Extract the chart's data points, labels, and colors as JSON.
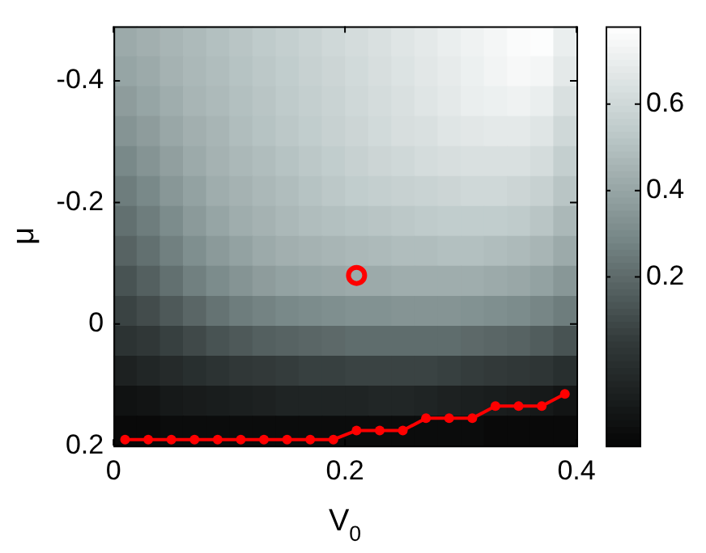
{
  "chart_data": {
    "type": "heatmap",
    "xlabel": "V$_{0}$",
    "ylabel": "μ",
    "xlim": [
      0,
      0.4
    ],
    "xticks": [
      0,
      0.2,
      0.4
    ],
    "ylim": [
      0.2,
      -0.49
    ],
    "yticks": [
      -0.4,
      -0.2,
      0,
      0.2
    ],
    "clim": [
      -0.19,
      0.78
    ],
    "cticks": [
      0.2,
      0.4,
      0.6
    ],
    "grid": false,
    "legend": false,
    "cells": [
      [
        0.42,
        0.44,
        0.46,
        0.48,
        0.5,
        0.52,
        0.54,
        0.56,
        0.58,
        0.6,
        0.62,
        0.64,
        0.66,
        0.68,
        0.7,
        0.72,
        0.74,
        0.76,
        0.77,
        0.7
      ],
      [
        0.4,
        0.42,
        0.45,
        0.47,
        0.49,
        0.51,
        0.53,
        0.55,
        0.57,
        0.59,
        0.61,
        0.63,
        0.65,
        0.67,
        0.69,
        0.71,
        0.73,
        0.75,
        0.74,
        0.68
      ],
      [
        0.37,
        0.4,
        0.43,
        0.46,
        0.48,
        0.5,
        0.52,
        0.54,
        0.56,
        0.58,
        0.6,
        0.62,
        0.64,
        0.66,
        0.68,
        0.7,
        0.71,
        0.72,
        0.7,
        0.64
      ],
      [
        0.34,
        0.37,
        0.41,
        0.44,
        0.46,
        0.49,
        0.51,
        0.53,
        0.55,
        0.57,
        0.59,
        0.61,
        0.63,
        0.64,
        0.66,
        0.67,
        0.68,
        0.68,
        0.66,
        0.6
      ],
      [
        0.3,
        0.34,
        0.38,
        0.42,
        0.45,
        0.47,
        0.49,
        0.51,
        0.53,
        0.55,
        0.57,
        0.59,
        0.6,
        0.62,
        0.63,
        0.64,
        0.64,
        0.64,
        0.62,
        0.56
      ],
      [
        0.26,
        0.3,
        0.35,
        0.39,
        0.43,
        0.45,
        0.47,
        0.49,
        0.51,
        0.53,
        0.55,
        0.56,
        0.57,
        0.58,
        0.59,
        0.6,
        0.6,
        0.59,
        0.57,
        0.52
      ],
      [
        0.22,
        0.26,
        0.31,
        0.36,
        0.4,
        0.43,
        0.45,
        0.47,
        0.49,
        0.5,
        0.51,
        0.52,
        0.53,
        0.54,
        0.55,
        0.55,
        0.55,
        0.54,
        0.52,
        0.47
      ],
      [
        0.18,
        0.22,
        0.27,
        0.32,
        0.36,
        0.39,
        0.42,
        0.44,
        0.45,
        0.46,
        0.47,
        0.48,
        0.49,
        0.49,
        0.5,
        0.5,
        0.49,
        0.48,
        0.46,
        0.42
      ],
      [
        0.13,
        0.17,
        0.22,
        0.27,
        0.31,
        0.34,
        0.37,
        0.39,
        0.4,
        0.41,
        0.42,
        0.42,
        0.43,
        0.43,
        0.43,
        0.43,
        0.42,
        0.41,
        0.39,
        0.35
      ],
      [
        0.08,
        0.11,
        0.15,
        0.19,
        0.23,
        0.26,
        0.28,
        0.3,
        0.31,
        0.32,
        0.33,
        0.33,
        0.34,
        0.34,
        0.34,
        0.33,
        0.32,
        0.31,
        0.29,
        0.26
      ],
      [
        0.02,
        0.04,
        0.07,
        0.1,
        0.13,
        0.15,
        0.17,
        0.18,
        0.19,
        0.2,
        0.21,
        0.21,
        0.21,
        0.21,
        0.21,
        0.2,
        0.19,
        0.18,
        0.16,
        0.13
      ],
      [
        -0.06,
        -0.04,
        -0.02,
        0.0,
        0.02,
        0.04,
        0.05,
        0.06,
        0.07,
        0.07,
        0.08,
        0.08,
        0.08,
        0.08,
        0.07,
        0.06,
        0.05,
        0.04,
        0.03,
        0.0
      ],
      [
        -0.13,
        -0.12,
        -0.1,
        -0.09,
        -0.08,
        -0.07,
        -0.06,
        -0.05,
        -0.05,
        -0.05,
        -0.05,
        -0.04,
        -0.04,
        -0.05,
        -0.06,
        -0.07,
        -0.08,
        -0.09,
        -0.1,
        -0.12
      ],
      [
        -0.17,
        -0.17,
        -0.16,
        -0.16,
        -0.16,
        -0.16,
        -0.16,
        -0.16,
        -0.16,
        -0.16,
        -0.16,
        -0.16,
        -0.16,
        -0.16,
        -0.16,
        -0.16,
        -0.17,
        -0.17,
        -0.17,
        -0.17
      ]
    ],
    "series": [
      {
        "type": "line",
        "color": "#ff0000",
        "marker": "circle",
        "x": [
          0.01,
          0.03,
          0.05,
          0.07,
          0.09,
          0.11,
          0.13,
          0.15,
          0.17,
          0.19,
          0.21,
          0.23,
          0.25,
          0.27,
          0.29,
          0.31,
          0.33,
          0.35,
          0.37,
          0.39
        ],
        "values": [
          0.19,
          0.19,
          0.19,
          0.19,
          0.19,
          0.19,
          0.19,
          0.19,
          0.19,
          0.19,
          0.175,
          0.175,
          0.175,
          0.155,
          0.155,
          0.155,
          0.135,
          0.135,
          0.135,
          0.115
        ]
      },
      {
        "type": "scatter",
        "color": "#ff0000",
        "marker": "circle",
        "x": [
          0.21
        ],
        "values": [
          -0.08
        ]
      }
    ]
  }
}
